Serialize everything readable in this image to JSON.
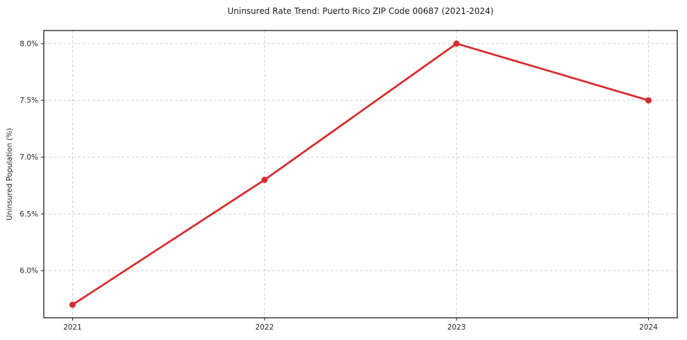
{
  "chart_data": {
    "type": "line",
    "title": "Uninsured Rate Trend: Puerto Rico ZIP Code 00687 (2021-2024)",
    "xlabel": "",
    "ylabel": "Uninsured Population (%)",
    "x": [
      2021,
      2022,
      2023,
      2024
    ],
    "values": [
      5.7,
      6.8,
      8.0,
      7.5
    ],
    "xticks": {
      "values": [
        2021,
        2022,
        2023,
        2024
      ],
      "labels": [
        "2021",
        "2022",
        "2023",
        "2024"
      ]
    },
    "yticks": {
      "values": [
        6.0,
        6.5,
        7.0,
        7.5,
        8.0
      ],
      "labels": [
        "6.0%",
        "6.5%",
        "7.0%",
        "7.5%",
        "8.0%"
      ]
    },
    "xlim": [
      2020.85,
      2024.15
    ],
    "ylim": [
      5.585,
      8.115
    ],
    "grid": true,
    "legend": "none",
    "colors": {
      "line": "#d62b2e",
      "grid": "#cccccc",
      "axis": "#1a1a1a",
      "tick_text": "#262626",
      "background": "#ffffff"
    }
  }
}
